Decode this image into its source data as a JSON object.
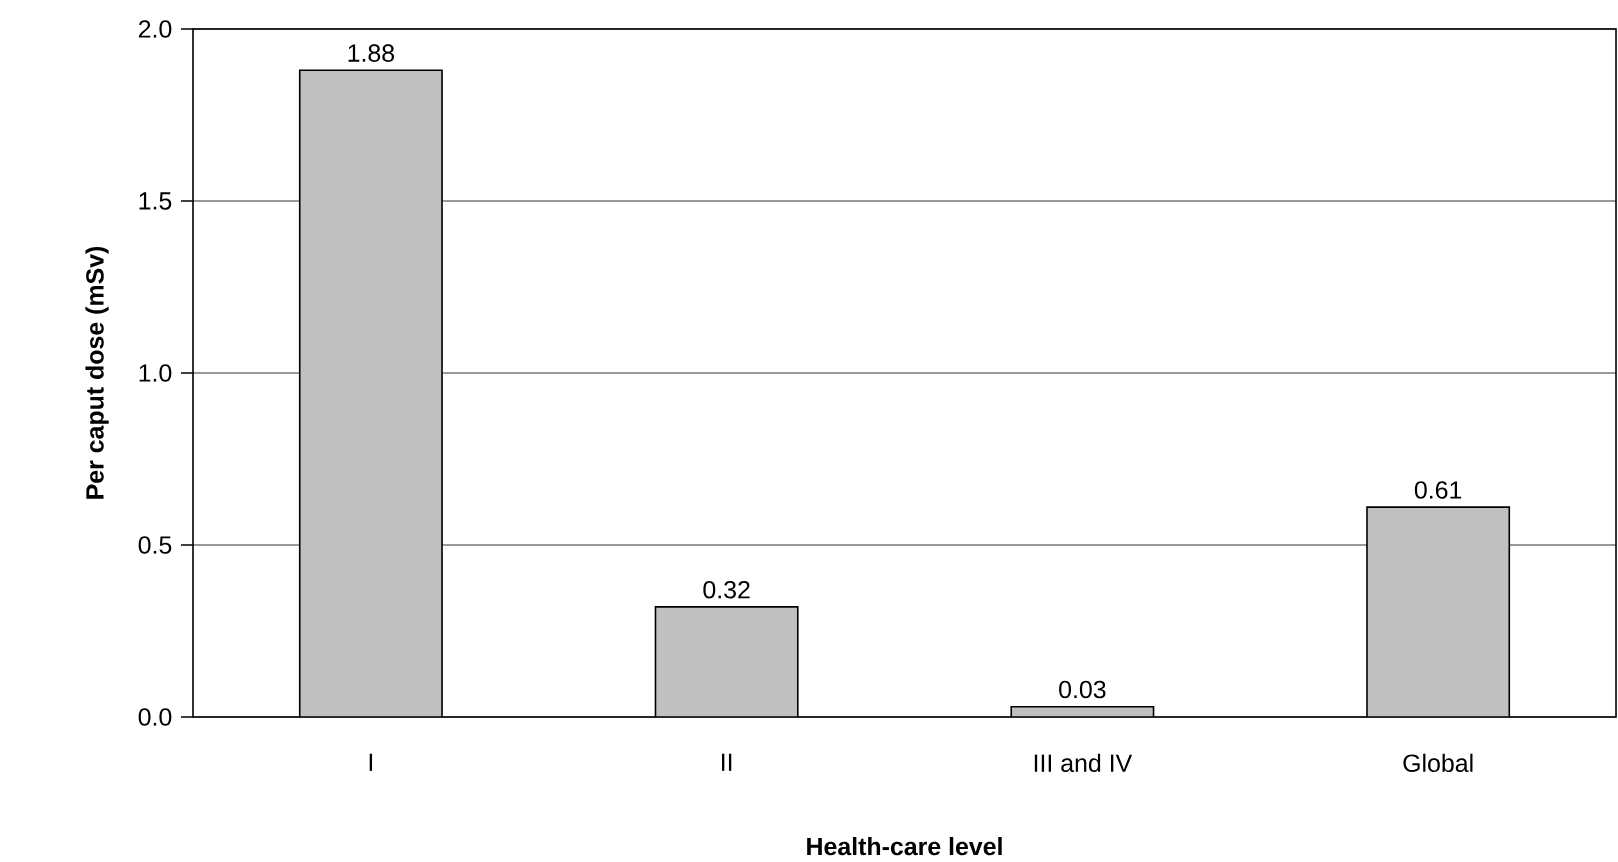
{
  "chart_data": {
    "type": "bar",
    "xlabel": "Health-care level",
    "ylabel": "Per caput dose (mSv)",
    "categories": [
      "I",
      "II",
      "III and IV",
      "Global"
    ],
    "values": [
      1.88,
      0.32,
      0.03,
      0.61
    ],
    "color": "#c0c0c0",
    "ylim": [
      0,
      2
    ],
    "yticks": [
      {
        "value": 0,
        "label": "0.0"
      },
      0.5,
      {
        "value": 1,
        "label": "1.0"
      },
      1.5,
      {
        "value": 2,
        "label": "2.0"
      }
    ],
    "grid": "y",
    "data_labels": true
  }
}
